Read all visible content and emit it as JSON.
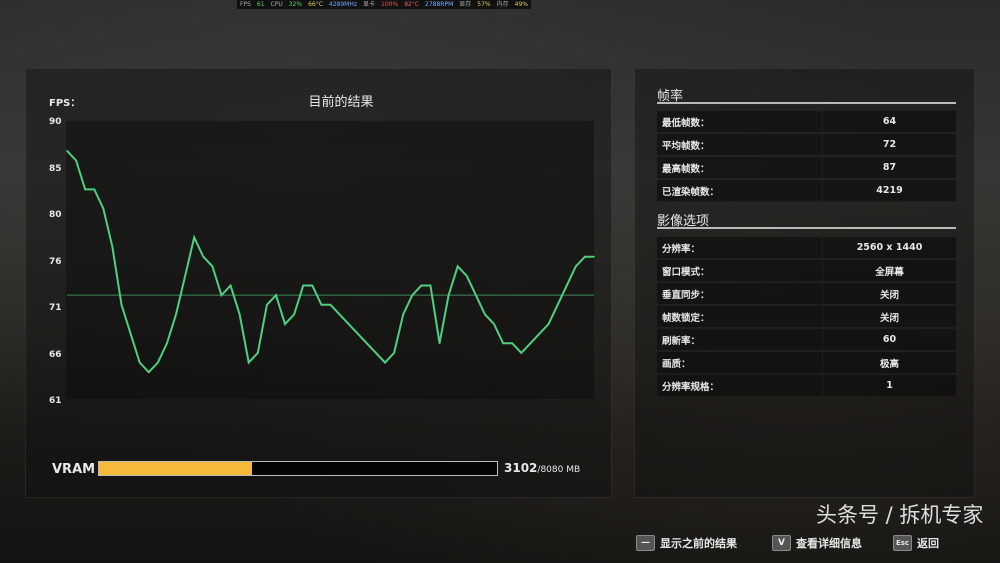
{
  "osd": {
    "fps_label": "FPS",
    "fps": "61",
    "cpu_label": "CPU",
    "cpu_load": "32%",
    "cpu_temp": "66°C",
    "cpu_clock": "4289MHz",
    "gpu_label": "显卡",
    "gpu_load": "100%",
    "gpu_temp": "82°C",
    "fan": "2788RPM",
    "vram_label": "显存",
    "vram_pct": "57%",
    "ram_label": "内存",
    "ram_pct": "49%"
  },
  "chart_data": {
    "type": "line",
    "title": "目前的结果",
    "ylabel": "FPS：",
    "ylim": [
      61,
      90
    ],
    "yticks": [
      "90",
      "85",
      "80",
      "76",
      "71",
      "66",
      "61"
    ],
    "grid": false,
    "average": 72,
    "line_color": "#4fd07f",
    "values": [
      87,
      86,
      83,
      83,
      81,
      77,
      71,
      68,
      65,
      64,
      65,
      67,
      70,
      74,
      78,
      76,
      75,
      72,
      73,
      70,
      65,
      66,
      71,
      72,
      69,
      70,
      73,
      73,
      71,
      71,
      70,
      69,
      68,
      67,
      66,
      65,
      66,
      70,
      72,
      73,
      73,
      67,
      72,
      75,
      74,
      72,
      70,
      69,
      67,
      67,
      66,
      67,
      68,
      69,
      71,
      73,
      75,
      76,
      76
    ]
  },
  "vram": {
    "label": "VRAM",
    "used": "3102",
    "total": "/8080 MB",
    "fraction": 0.384,
    "color": "#f7b93a"
  },
  "framerate": {
    "title": "帧率",
    "rows": [
      {
        "k": "最低帧数：",
        "v": "64"
      },
      {
        "k": "平均帧数：",
        "v": "72"
      },
      {
        "k": "最高帧数：",
        "v": "87"
      },
      {
        "k": "已渲染帧数：",
        "v": "4219"
      }
    ]
  },
  "video": {
    "title": "影像选项",
    "rows": [
      {
        "k": "分辨率：",
        "v": "2560 x 1440"
      },
      {
        "k": "窗口模式：",
        "v": "全屏幕"
      },
      {
        "k": "垂直同步：",
        "v": "关闭"
      },
      {
        "k": "帧数锁定：",
        "v": "关闭"
      },
      {
        "k": "刷新率：",
        "v": "60"
      },
      {
        "k": "画质：",
        "v": "极高"
      },
      {
        "k": "分辨率规格：",
        "v": "1"
      }
    ]
  },
  "footer": {
    "prev_key": "—",
    "prev_label": "显示之前的结果",
    "detail_key": "V",
    "detail_label": "查看详细信息",
    "back_key": "Esc",
    "back_label": "返回"
  },
  "watermark": "头条号 / 拆机专家"
}
